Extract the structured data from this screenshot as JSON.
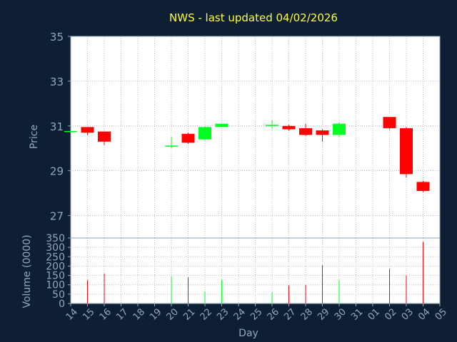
{
  "chart_data": {
    "type": "candlestick",
    "title": "NWS - last updated 04/02/2026",
    "xlabel": "Day",
    "price_panel": {
      "ylabel": "Price",
      "ylim": [
        26,
        35
      ],
      "yticks": [
        35,
        33,
        31,
        29,
        27
      ],
      "grid": true
    },
    "volume_panel": {
      "ylabel": "Volume (0000)",
      "ylim": [
        0,
        350
      ],
      "yticks": [
        350,
        300,
        250,
        200,
        150,
        100,
        50,
        0
      ],
      "grid": true
    },
    "x_tick_labels": [
      "14",
      "15",
      "16",
      "17",
      "18",
      "19",
      "20",
      "21",
      "22",
      "23",
      "24",
      "25",
      "26",
      "27",
      "28",
      "29",
      "30",
      "31",
      "01",
      "02",
      "03",
      "04",
      "05"
    ],
    "candles": [
      {
        "day": "14",
        "open": 30.75,
        "close": 30.75,
        "high": 30.75,
        "low": 30.75,
        "volume": 0
      },
      {
        "day": "15",
        "open": 30.95,
        "close": 30.7,
        "high": 30.95,
        "low": 30.6,
        "volume": 125
      },
      {
        "day": "16",
        "open": 30.75,
        "close": 30.3,
        "high": 30.75,
        "low": 30.15,
        "volume": 160
      },
      {
        "day": "20",
        "open": 30.1,
        "close": 30.1,
        "high": 30.5,
        "low": 30.0,
        "volume": 145
      },
      {
        "day": "21",
        "open": 30.65,
        "close": 30.25,
        "high": 30.7,
        "low": 30.2,
        "volume": 140
      },
      {
        "day": "22",
        "open": 30.4,
        "close": 30.95,
        "high": 31.0,
        "low": 30.35,
        "volume": 65
      },
      {
        "day": "23",
        "open": 30.95,
        "close": 31.1,
        "high": 31.1,
        "low": 30.95,
        "volume": 125
      },
      {
        "day": "26",
        "open": 31.0,
        "close": 31.05,
        "high": 31.25,
        "low": 30.85,
        "volume": 60
      },
      {
        "day": "27",
        "open": 31.0,
        "close": 30.85,
        "high": 31.05,
        "low": 30.8,
        "volume": 95
      },
      {
        "day": "28",
        "open": 30.9,
        "close": 30.6,
        "high": 31.1,
        "low": 30.55,
        "volume": 100
      },
      {
        "day": "29",
        "open": 30.8,
        "close": 30.6,
        "high": 30.85,
        "low": 30.3,
        "volume": 205
      },
      {
        "day": "30",
        "open": 30.6,
        "close": 31.1,
        "high": 31.15,
        "low": 30.5,
        "volume": 125
      },
      {
        "day": "02",
        "open": 31.4,
        "close": 30.9,
        "high": 31.4,
        "low": 30.85,
        "volume": 185
      },
      {
        "day": "03",
        "open": 30.9,
        "close": 28.85,
        "high": 30.95,
        "low": 28.7,
        "volume": 150
      },
      {
        "day": "04",
        "open": 28.5,
        "close": 28.1,
        "high": 28.55,
        "low": 28.05,
        "volume": 330
      }
    ],
    "colors": {
      "background": "#0f1f33",
      "plot_border": "#8fa8c0",
      "grid": "#b0bcc8",
      "title": "#ffff33",
      "label": "#8fa8c0",
      "up": "#00ff22",
      "down": "#ff0000",
      "axis_text": "#000000"
    }
  }
}
